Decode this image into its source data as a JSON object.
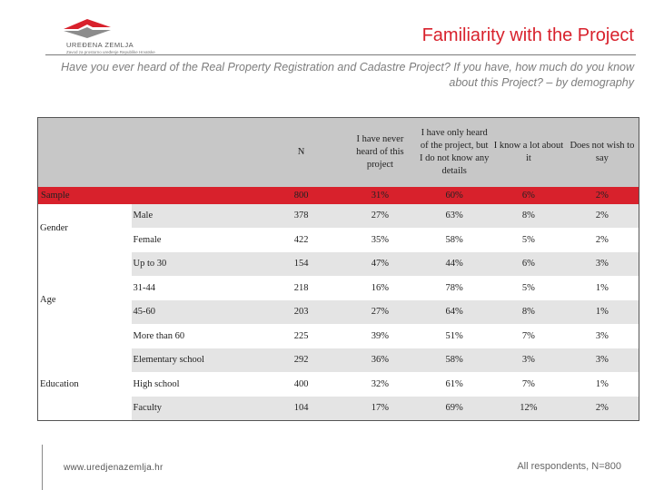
{
  "logo": {
    "icon": "uredjena-zemlja-logo-icon",
    "name": "UREĐENA ZEMLJA",
    "tagline": "Zavod za prostorno uređenje Republike Hrvatske"
  },
  "header": {
    "title": "Familiarity with the Project",
    "subtitle": "Have you ever heard of the Real Property Registration and Cadastre Project? If you have, how much do you know about this Project? – by demography"
  },
  "table": {
    "columns": [
      "N",
      "I have never heard of this project",
      "I have only heard of the project, but I do not know any details",
      "I know a lot about it",
      "Does not wish to say"
    ],
    "sample": {
      "label": "Sample",
      "values": [
        "800",
        "31%",
        "60%",
        "6%",
        "2%"
      ]
    },
    "groups": [
      {
        "label": "Gender",
        "rows": [
          {
            "label": "Male",
            "values": [
              "378",
              "27%",
              "63%",
              "8%",
              "2%"
            ]
          },
          {
            "label": "Female",
            "values": [
              "422",
              "35%",
              "58%",
              "5%",
              "2%"
            ]
          }
        ]
      },
      {
        "label": "Age",
        "rows": [
          {
            "label": "Up to 30",
            "values": [
              "154",
              "47%",
              "44%",
              "6%",
              "3%"
            ]
          },
          {
            "label": "31-44",
            "values": [
              "218",
              "16%",
              "78%",
              "5%",
              "1%"
            ]
          },
          {
            "label": "45-60",
            "values": [
              "203",
              "27%",
              "64%",
              "8%",
              "1%"
            ]
          },
          {
            "label": "More than 60",
            "values": [
              "225",
              "39%",
              "51%",
              "7%",
              "3%"
            ]
          }
        ]
      },
      {
        "label": "Education",
        "rows": [
          {
            "label": "Elementary school",
            "values": [
              "292",
              "36%",
              "58%",
              "3%",
              "3%"
            ]
          },
          {
            "label": "High school",
            "values": [
              "400",
              "32%",
              "61%",
              "7%",
              "1%"
            ]
          },
          {
            "label": "Faculty",
            "values": [
              "104",
              "17%",
              "69%",
              "12%",
              "2%"
            ]
          }
        ]
      }
    ]
  },
  "footer": {
    "website": "www.uredjenazemlja.hr",
    "note": "All respondents, N=800"
  },
  "colors": {
    "accent": "#d8212c",
    "header_fill": "#c7c7c7",
    "stripe": "#e4e4e4"
  }
}
